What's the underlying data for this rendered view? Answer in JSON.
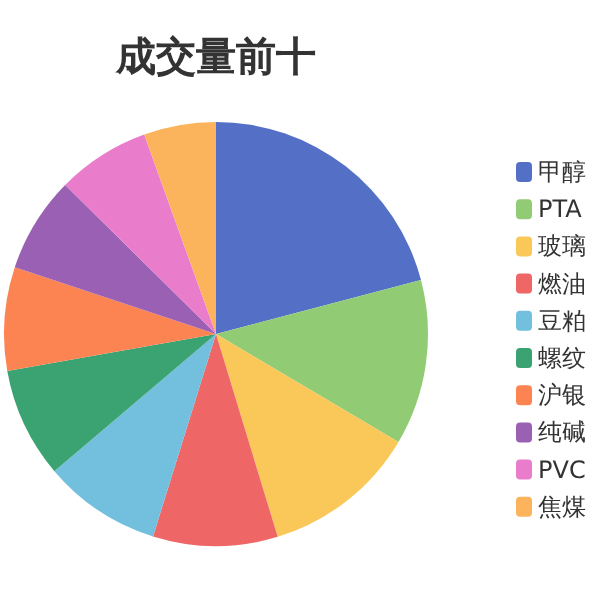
{
  "chart_data": {
    "type": "pie",
    "title": "成交量前十",
    "categories": [
      "甲醇",
      "PTA",
      "玻璃",
      "燃油",
      "豆粕",
      "螺纹",
      "沪银",
      "纯碱",
      "PVC",
      "焦煤"
    ],
    "values": [
      20.9,
      12.6,
      11.8,
      9.5,
      9.0,
      8.4,
      7.9,
      7.3,
      7.1,
      5.5
    ],
    "colors": [
      "#5470c6",
      "#91cc75",
      "#fac858",
      "#ee6666",
      "#73c0de",
      "#3ba272",
      "#fc8452",
      "#9a60b4",
      "#ea7ccc",
      "#fcb45c"
    ],
    "legend": "right"
  }
}
